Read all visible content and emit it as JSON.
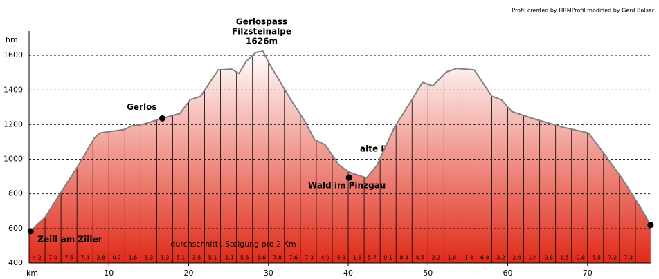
{
  "chart_data": {
    "type": "area",
    "credit": "Profil created by HRMProfil modified by Gerd Balser",
    "y_label": "hm",
    "x_label": "km",
    "note": "durchschnittl. Steigung pro 2 Km",
    "summit_label": [
      "Gerlospass",
      "Filzsteinalpe",
      "1626m"
    ],
    "road_label": "alte   Bundesstraße",
    "color": "#e02a18",
    "line_color": "#808080",
    "grid": true,
    "xlim": [
      0,
      78
    ],
    "xticks": [
      10,
      20,
      30,
      40,
      50,
      60,
      70
    ],
    "ylim": [
      400,
      1740
    ],
    "yticks": [
      400,
      600,
      800,
      1000,
      1200,
      1400,
      1600
    ],
    "x": [
      0,
      2,
      4.2,
      5.9,
      8.2,
      8.9,
      12,
      12.8,
      14.1,
      16.7,
      18.9,
      20.2,
      21.5,
      23.7,
      25.4,
      26.3,
      27.2,
      28.4,
      29.3,
      30.2,
      31.5,
      32.8,
      34.5,
      35.8,
      37.1,
      38.9,
      40.2,
      42.3,
      43.6,
      45.8,
      48,
      49.3,
      50.6,
      52.3,
      53.6,
      55.8,
      58,
      59.2,
      60.5,
      63.1,
      64.9,
      67,
      70.1,
      72.2,
      74.4,
      76.6,
      77.9
    ],
    "values": [
      580,
      664,
      824,
      944,
      1124,
      1152,
      1172,
      1192,
      1200,
      1236,
      1264,
      1344,
      1364,
      1516,
      1520,
      1496,
      1564,
      1616,
      1624,
      1544,
      1444,
      1344,
      1224,
      1112,
      1084,
      964,
      924,
      892,
      964,
      1184,
      1344,
      1444,
      1424,
      1504,
      1524,
      1516,
      1364,
      1344,
      1276,
      1236,
      1212,
      1184,
      1152,
      1024,
      884,
      724,
      620
    ],
    "points": [
      {
        "label": "Zeill am Ziller",
        "x": 0.2,
        "y": 584
      },
      {
        "label": "Gerlos",
        "x": 16.7,
        "y": 1236
      },
      {
        "label": "Wald im Pinzgau",
        "x": 40.1,
        "y": 894
      },
      {
        "label": null,
        "x": 77.9,
        "y": 620
      }
    ],
    "gradients": {
      "values": [
        4.2,
        7,
        7.5,
        7.4,
        2.8,
        0.7,
        1.6,
        1.3,
        1.3,
        5.1,
        3.5,
        5.1,
        -1.1,
        5.5,
        -1.6,
        -7.8,
        -7.6,
        -7.3,
        -4.9,
        -4.3,
        -1.8,
        5.7,
        9.1,
        8.3,
        4.5,
        2.2,
        1.8,
        -1.4,
        -6.8,
        -3.2,
        -2.4,
        -1.4,
        -0.8,
        -1.5,
        -0.8,
        -5.5,
        -7.2,
        -7.3
      ],
      "value_labels": [
        "4.2",
        "7.0",
        "7.5",
        "7.4",
        "2.8",
        "0.7",
        "1.6",
        "1.3",
        "1.3",
        "5.1",
        "3.5",
        "5.1",
        "-1.1",
        "5.5",
        "-1.6",
        "-7.8",
        "-7.6",
        "-7.3",
        "-4.9",
        "-4.3",
        "-1.8",
        "5.7",
        "9.1",
        "8.3",
        "4.5",
        "2.2",
        "1.8",
        "-1.4",
        "-6.8",
        "-3.2",
        "-2.4",
        "-1.4",
        "-0.8",
        "-1.5",
        "-0.8",
        "-5.5",
        "-7.2",
        "-7.3"
      ]
    }
  }
}
